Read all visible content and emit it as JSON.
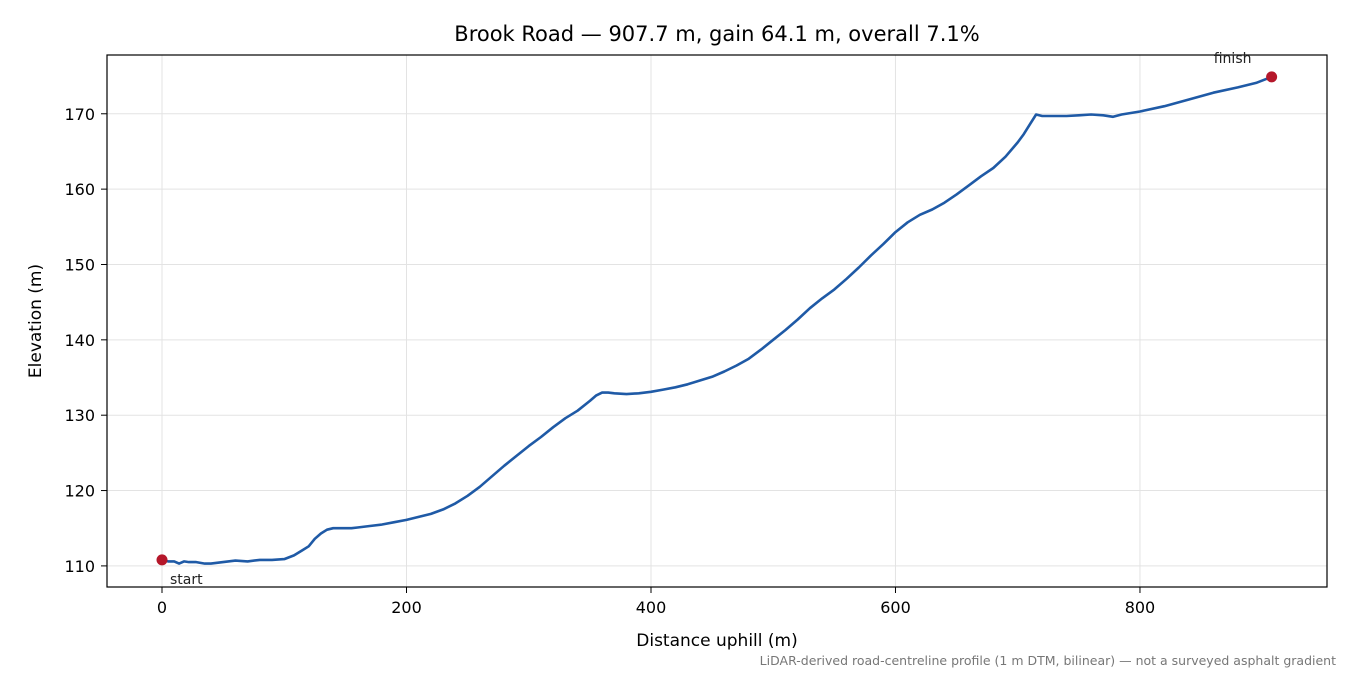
{
  "chart_data": {
    "type": "line",
    "title": "Brook Road — 907.7 m, gain 64.1 m, overall 7.1%",
    "xlabel": "Distance uphill (m)",
    "ylabel": "Elevation (m)",
    "xlim": [
      -45,
      953
    ],
    "ylim": [
      107.2,
      177.8
    ],
    "xticks": [
      0,
      200,
      400,
      600,
      800
    ],
    "yticks": [
      110,
      120,
      130,
      140,
      150,
      160,
      170
    ],
    "grid": true,
    "line_color": "#1f5aa6",
    "marker_color": "#b5172a",
    "series": [
      {
        "x": [
          0,
          5,
          10,
          14,
          18,
          22,
          28,
          35,
          40,
          50,
          60,
          70,
          80,
          90,
          100,
          108,
          115,
          120,
          125,
          130,
          135,
          140,
          145,
          150,
          155,
          160,
          170,
          180,
          190,
          200,
          210,
          220,
          230,
          240,
          250,
          260,
          270,
          280,
          290,
          300,
          310,
          320,
          330,
          340,
          350,
          355,
          360,
          365,
          370,
          380,
          390,
          400,
          410,
          420,
          430,
          440,
          450,
          460,
          470,
          480,
          490,
          500,
          510,
          520,
          530,
          540,
          550,
          560,
          570,
          580,
          590,
          600,
          610,
          620,
          630,
          640,
          650,
          660,
          670,
          680,
          690,
          700,
          705,
          710,
          715,
          720,
          730,
          740,
          750,
          760,
          770,
          778,
          785,
          800,
          820,
          840,
          860,
          880,
          895,
          907.7
        ],
        "y": [
          110.8,
          110.6,
          110.6,
          110.3,
          110.6,
          110.5,
          110.5,
          110.3,
          110.3,
          110.5,
          110.7,
          110.6,
          110.8,
          110.8,
          110.9,
          111.4,
          112.1,
          112.6,
          113.6,
          114.3,
          114.8,
          115.0,
          115.0,
          115.0,
          115.0,
          115.1,
          115.3,
          115.5,
          115.8,
          116.1,
          116.5,
          116.9,
          117.5,
          118.3,
          119.3,
          120.5,
          121.9,
          123.3,
          124.6,
          125.9,
          127.1,
          128.4,
          129.6,
          130.6,
          131.9,
          132.6,
          133.0,
          133.0,
          132.9,
          132.8,
          132.9,
          133.1,
          133.4,
          133.7,
          134.1,
          134.6,
          135.1,
          135.8,
          136.6,
          137.5,
          138.7,
          140.0,
          141.3,
          142.7,
          144.2,
          145.5,
          146.7,
          148.1,
          149.6,
          151.2,
          152.7,
          154.3,
          155.6,
          156.6,
          157.3,
          158.2,
          159.3,
          160.5,
          161.7,
          162.8,
          164.3,
          166.2,
          167.3,
          168.6,
          169.9,
          169.7,
          169.7,
          169.7,
          169.8,
          169.9,
          169.8,
          169.6,
          169.9,
          170.3,
          171.0,
          171.9,
          172.8,
          173.5,
          174.1,
          174.9
        ]
      }
    ],
    "points": {
      "start": {
        "label": "start",
        "x": 0,
        "y": 110.8
      },
      "finish": {
        "label": "finish",
        "x": 907.7,
        "y": 174.9
      }
    },
    "footnote": "LiDAR-derived road-centreline profile (1 m DTM, bilinear) — not a surveyed asphalt gradient"
  }
}
